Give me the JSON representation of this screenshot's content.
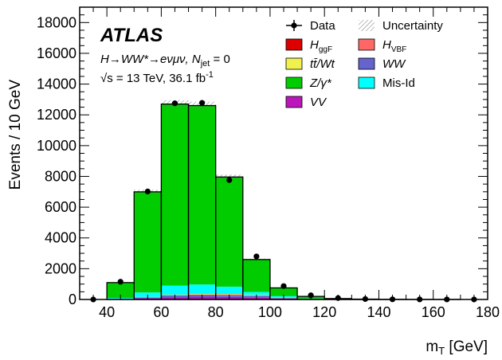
{
  "chart_data": {
    "type": "bar",
    "stacked": true,
    "xlabel": "m_T [GeV]",
    "xlabel_main": "m",
    "xlabel_sub": "T",
    "xlabel_unit": " [GeV]",
    "ylabel": "Events / 10 GeV",
    "xlim": [
      30,
      180
    ],
    "ylim": [
      0,
      19000
    ],
    "xticks": [
      40,
      60,
      80,
      100,
      120,
      140,
      160,
      180
    ],
    "yticks": [
      0,
      2000,
      4000,
      6000,
      8000,
      10000,
      12000,
      14000,
      16000,
      18000
    ],
    "bin_edges": [
      30,
      40,
      50,
      60,
      70,
      80,
      90,
      100,
      110,
      120,
      130,
      140,
      150,
      160,
      170,
      180
    ],
    "series": [
      {
        "name": "VV",
        "color": "#bb16bb",
        "values": [
          0,
          20,
          80,
          150,
          180,
          170,
          140,
          60,
          15,
          5,
          2,
          1,
          0,
          0,
          0
        ]
      },
      {
        "name": "WW",
        "color": "#6464cc",
        "values": [
          0,
          10,
          60,
          110,
          130,
          130,
          110,
          40,
          10,
          3,
          1,
          1,
          0,
          0,
          0
        ]
      },
      {
        "name": "tt/Wt",
        "color": "#f0f04e",
        "values": [
          0,
          5,
          20,
          40,
          50,
          50,
          40,
          20,
          5,
          2,
          1,
          0,
          0,
          0,
          0
        ]
      },
      {
        "name": "H_ggF",
        "color": "#dd0000",
        "values": [
          0,
          2,
          5,
          10,
          12,
          10,
          6,
          2,
          1,
          0,
          0,
          0,
          0,
          0,
          0
        ]
      },
      {
        "name": "H_VBF",
        "color": "#ff6666",
        "values": [
          0,
          0,
          1,
          2,
          2,
          2,
          1,
          1,
          0,
          0,
          0,
          0,
          0,
          0,
          0
        ]
      },
      {
        "name": "Mis-Id",
        "color": "#00ffff",
        "values": [
          0,
          60,
          290,
          590,
          600,
          470,
          190,
          90,
          30,
          10,
          5,
          2,
          1,
          0,
          0
        ]
      },
      {
        "name": "Z/gamma*",
        "color": "#00cc00",
        "values": [
          0,
          1000,
          6540,
          11800,
          11630,
          7130,
          2110,
          540,
          140,
          40,
          15,
          5,
          2,
          1,
          0
        ]
      }
    ],
    "totals": [
      0,
      1097,
      6996,
      12702,
      12604,
      7962,
      2597,
      753,
      201,
      60,
      24,
      9,
      3,
      1,
      0
    ],
    "data": {
      "name": "Data",
      "x": [
        35,
        45,
        55,
        65,
        75,
        85,
        95,
        105,
        115,
        125,
        135,
        145,
        155,
        165,
        175
      ],
      "y": [
        0,
        1150,
        7020,
        12750,
        12780,
        7760,
        2800,
        870,
        270,
        90,
        30,
        10,
        5,
        3,
        1
      ]
    },
    "uncertainty": {
      "name": "Uncertainty",
      "relative": 0.02
    },
    "legend": {
      "placement": "top-right",
      "entries": [
        {
          "label": "Data",
          "type": "marker"
        },
        {
          "label": "Uncertainty",
          "type": "hatch"
        },
        {
          "main": "H",
          "sub": "ggF",
          "type": "box",
          "color": "#dd0000"
        },
        {
          "main": "H",
          "sub": "VBF",
          "type": "box",
          "color": "#ff6666"
        },
        {
          "label": "tt̄/Wt",
          "type": "box",
          "color": "#f0f04e"
        },
        {
          "label": "WW",
          "type": "box",
          "color": "#6464cc"
        },
        {
          "label": "Z/γ*",
          "type": "box",
          "color": "#00cc00"
        },
        {
          "label": "Mis-Id",
          "type": "box",
          "color": "#00ffff"
        },
        {
          "label": "VV",
          "type": "box",
          "color": "#bb16bb"
        }
      ]
    },
    "annotations": {
      "experiment": "ATLAS",
      "process": "H→WW*→eνμν, N",
      "process_sub": "jet",
      "process_tail": " = 0",
      "energy": "√s = 13 TeV, 36.1 fb",
      "energy_sup": "-1"
    }
  }
}
